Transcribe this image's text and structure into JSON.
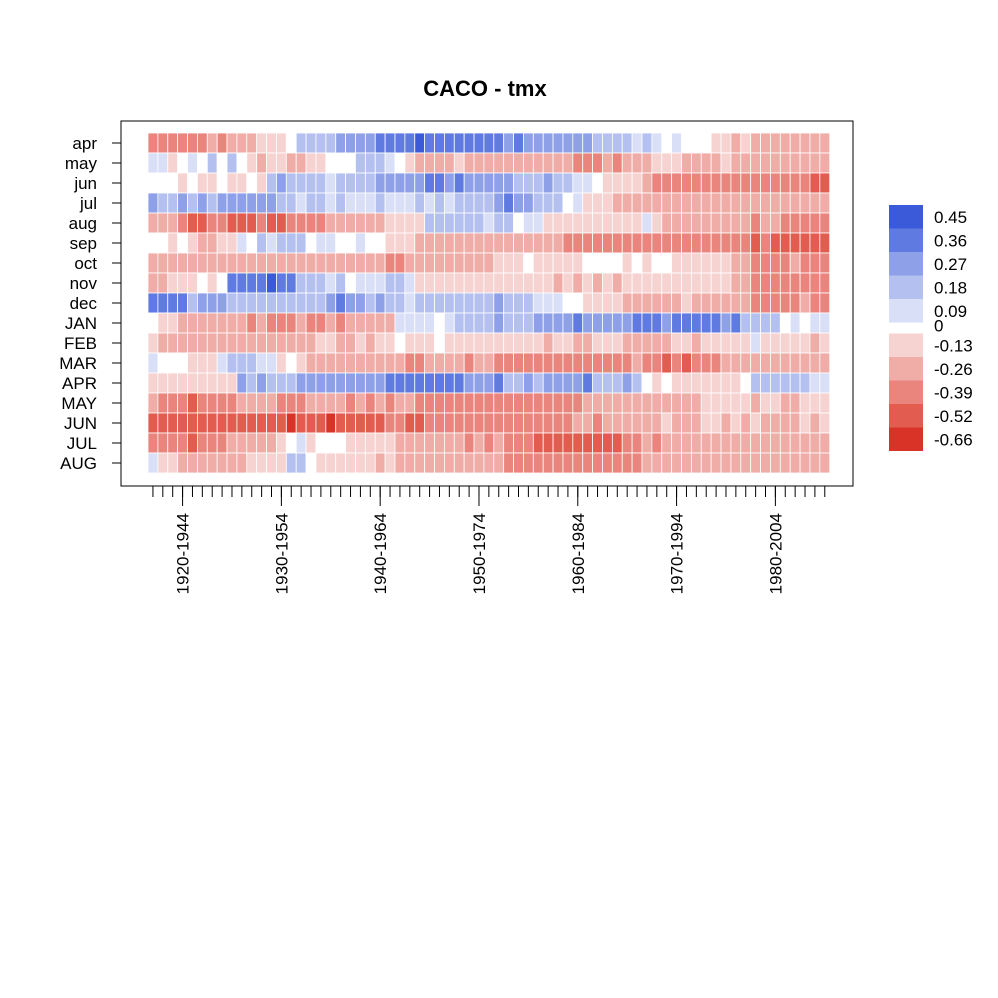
{
  "chart_data": {
    "type": "heatmap",
    "title": "CACO - tmx",
    "xlabel": "",
    "ylabel": "",
    "rows": [
      "apr",
      "may",
      "jun",
      "jul",
      "aug",
      "sep",
      "oct",
      "nov",
      "dec",
      "JAN",
      "FEB",
      "MAR",
      "APR",
      "MAY",
      "JUN",
      "JUL",
      "AUG"
    ],
    "n_windows": 69,
    "x_tick_labels": [
      "1920-1944",
      "1930-1954",
      "1940-1964",
      "1950-1974",
      "1960-1984",
      "1970-1994",
      "1980-2004"
    ],
    "legend": {
      "labels": [
        "0.45",
        "0.36",
        "0.27",
        "0.18",
        "0.09",
        "0",
        "-0.13",
        "-0.26",
        "-0.39",
        "-0.52",
        "-0.66"
      ],
      "colors": [
        "#3a5ad9",
        "#5f7ae0",
        "#8ea0e8",
        "#b4c0ef",
        "#d9dff7",
        "#ffffff",
        "#f6d3d1",
        "#f0aca7",
        "#ea857d",
        "#e25c50",
        "#d93226"
      ]
    },
    "zlim": [
      -0.66,
      0.45
    ],
    "segments": {
      "apr": [
        [
          0,
          -0.25
        ],
        [
          8,
          -0.22
        ],
        [
          12,
          -0.05
        ],
        [
          15,
          0.09
        ],
        [
          20,
          0.22
        ],
        [
          24,
          0.35
        ],
        [
          26,
          0.33
        ],
        [
          38,
          0.24
        ],
        [
          45,
          0.14
        ],
        [
          52,
          0.06
        ],
        [
          57,
          -0.08
        ],
        [
          62,
          -0.16
        ],
        [
          68,
          -0.22
        ]
      ],
      "may": [
        [
          0,
          0.02
        ],
        [
          8,
          0.12
        ],
        [
          10,
          -0.08
        ],
        [
          14,
          -0.16
        ],
        [
          18,
          0.03
        ],
        [
          22,
          0.14
        ],
        [
          25,
          0.0
        ],
        [
          27,
          -0.15
        ],
        [
          44,
          -0.3
        ],
        [
          49,
          -0.12
        ],
        [
          68,
          -0.24
        ]
      ],
      "jun": [
        [
          0,
          0.05
        ],
        [
          8,
          -0.1
        ],
        [
          12,
          0.15
        ],
        [
          18,
          0.1
        ],
        [
          24,
          0.22
        ],
        [
          28,
          0.3
        ],
        [
          37,
          0.18
        ],
        [
          45,
          0.02
        ],
        [
          51,
          -0.35
        ],
        [
          61,
          -0.3
        ],
        [
          68,
          -0.42
        ]
      ],
      "jul": [
        [
          0,
          0.18
        ],
        [
          8,
          0.22
        ],
        [
          14,
          0.1
        ],
        [
          28,
          0.08
        ],
        [
          36,
          0.24
        ],
        [
          42,
          0.05
        ],
        [
          45,
          -0.15
        ],
        [
          68,
          -0.28
        ]
      ],
      "aug": [
        [
          0,
          -0.2
        ],
        [
          4,
          -0.38
        ],
        [
          9,
          -0.45
        ],
        [
          18,
          -0.22
        ],
        [
          28,
          0.12
        ],
        [
          35,
          0.1
        ],
        [
          40,
          -0.05
        ],
        [
          45,
          -0.12
        ],
        [
          50,
          0.02
        ],
        [
          52,
          -0.2
        ],
        [
          61,
          -0.25
        ],
        [
          68,
          -0.33
        ]
      ],
      "sep": [
        [
          0,
          0.02
        ],
        [
          5,
          -0.12
        ],
        [
          9,
          0.04
        ],
        [
          14,
          0.15
        ],
        [
          16,
          0.03
        ],
        [
          20,
          0.08
        ],
        [
          24,
          0.02
        ],
        [
          27,
          -0.18
        ],
        [
          40,
          -0.28
        ],
        [
          48,
          -0.32
        ],
        [
          56,
          -0.3
        ],
        [
          61,
          -0.42
        ],
        [
          68,
          -0.48
        ]
      ],
      "oct": [
        [
          0,
          -0.22
        ],
        [
          18,
          -0.16
        ],
        [
          24,
          -0.3
        ],
        [
          35,
          -0.05
        ],
        [
          45,
          0.0
        ],
        [
          52,
          0.03
        ],
        [
          61,
          -0.3
        ],
        [
          68,
          -0.3
        ]
      ],
      "nov": [
        [
          0,
          -0.18
        ],
        [
          8,
          0.25
        ],
        [
          12,
          0.42
        ],
        [
          15,
          0.18
        ],
        [
          20,
          0.03
        ],
        [
          24,
          0.18
        ],
        [
          27,
          -0.08
        ],
        [
          35,
          -0.1
        ],
        [
          45,
          -0.15
        ],
        [
          50,
          -0.05
        ],
        [
          55,
          0.0
        ],
        [
          61,
          -0.3
        ],
        [
          68,
          -0.28
        ]
      ],
      "dec": [
        [
          0,
          0.35
        ],
        [
          4,
          0.18
        ],
        [
          8,
          0.15
        ],
        [
          12,
          0.1
        ],
        [
          18,
          0.25
        ],
        [
          25,
          0.12
        ],
        [
          35,
          0.15
        ],
        [
          40,
          0.05
        ],
        [
          45,
          -0.1
        ],
        [
          48,
          -0.2
        ],
        [
          55,
          -0.15
        ],
        [
          61,
          -0.3
        ],
        [
          68,
          -0.28
        ]
      ],
      "JAN": [
        [
          0,
          0.03
        ],
        [
          3,
          -0.18
        ],
        [
          9,
          -0.22
        ],
        [
          16,
          -0.3
        ],
        [
          25,
          0.03
        ],
        [
          35,
          0.18
        ],
        [
          43,
          0.25
        ],
        [
          53,
          0.33
        ],
        [
          60,
          0.18
        ],
        [
          64,
          0.03
        ],
        [
          68,
          0.05
        ]
      ],
      "FEB": [
        [
          0,
          -0.15
        ],
        [
          8,
          -0.25
        ],
        [
          15,
          -0.18
        ],
        [
          25,
          0.02
        ],
        [
          30,
          -0.05
        ],
        [
          37,
          -0.1
        ],
        [
          50,
          -0.18
        ],
        [
          61,
          0.03
        ],
        [
          63,
          -0.1
        ],
        [
          68,
          -0.12
        ]
      ],
      "MAR": [
        [
          0,
          0.02
        ],
        [
          5,
          -0.08
        ],
        [
          8,
          0.15
        ],
        [
          16,
          -0.18
        ],
        [
          36,
          -0.32
        ],
        [
          49,
          -0.28
        ],
        [
          52,
          -0.38
        ],
        [
          57,
          -0.25
        ],
        [
          60,
          -0.2
        ],
        [
          68,
          -0.18
        ]
      ],
      "APR": [
        [
          0,
          -0.05
        ],
        [
          5,
          -0.15
        ],
        [
          9,
          0.16
        ],
        [
          24,
          0.32
        ],
        [
          36,
          0.18
        ],
        [
          43,
          0.25
        ],
        [
          50,
          0.02
        ],
        [
          55,
          -0.12
        ],
        [
          61,
          0.1
        ],
        [
          68,
          0.08
        ]
      ],
      "MAY": [
        [
          0,
          -0.25
        ],
        [
          4,
          -0.38
        ],
        [
          9,
          -0.28
        ],
        [
          16,
          -0.22
        ],
        [
          28,
          -0.3
        ],
        [
          38,
          -0.35
        ],
        [
          44,
          -0.25
        ],
        [
          49,
          -0.18
        ],
        [
          55,
          -0.12
        ],
        [
          68,
          -0.1
        ]
      ],
      "JUN": [
        [
          0,
          -0.45
        ],
        [
          6,
          -0.5
        ],
        [
          10,
          -0.45
        ],
        [
          16,
          -0.55
        ],
        [
          20,
          -0.45
        ],
        [
          28,
          -0.35
        ],
        [
          42,
          -0.25
        ],
        [
          52,
          -0.15
        ],
        [
          68,
          -0.15
        ]
      ],
      "JUL": [
        [
          0,
          -0.28
        ],
        [
          4,
          -0.38
        ],
        [
          8,
          -0.26
        ],
        [
          14,
          0.02
        ],
        [
          20,
          -0.05
        ],
        [
          24,
          -0.15
        ],
        [
          38,
          -0.42
        ],
        [
          46,
          -0.48
        ],
        [
          50,
          -0.25
        ],
        [
          56,
          -0.2
        ],
        [
          68,
          -0.2
        ]
      ],
      "AUG": [
        [
          0,
          0.02
        ],
        [
          2,
          -0.1
        ],
        [
          4,
          -0.2
        ],
        [
          10,
          -0.12
        ],
        [
          14,
          0.15
        ],
        [
          17,
          -0.05
        ],
        [
          22,
          -0.12
        ],
        [
          36,
          -0.3
        ],
        [
          46,
          -0.38
        ],
        [
          50,
          -0.2
        ],
        [
          60,
          -0.2
        ],
        [
          68,
          -0.22
        ]
      ]
    }
  }
}
